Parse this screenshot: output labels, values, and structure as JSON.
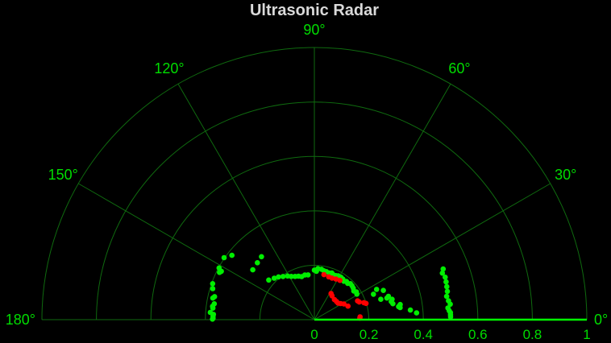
{
  "chart_data": {
    "type": "scatter",
    "coordinate_system": "polar-half",
    "title": "Ultrasonic Radar",
    "angle_ticks": [
      {
        "deg": 0,
        "label": "0°"
      },
      {
        "deg": 30,
        "label": "30°"
      },
      {
        "deg": 60,
        "label": "60°"
      },
      {
        "deg": 90,
        "label": "90°"
      },
      {
        "deg": 120,
        "label": "120°"
      },
      {
        "deg": 150,
        "label": "150°"
      },
      {
        "deg": 180,
        "label": "180°"
      }
    ],
    "radial_ticks": [
      {
        "r": 0,
        "label": "0"
      },
      {
        "r": 0.2,
        "label": "0.2"
      },
      {
        "r": 0.4,
        "label": "0.4"
      },
      {
        "r": 0.6,
        "label": "0.6"
      },
      {
        "r": 0.8,
        "label": "0.8"
      },
      {
        "r": 1,
        "label": "1"
      }
    ],
    "rlim": [
      0,
      1
    ],
    "grid": true,
    "sweep_angle_deg": 0,
    "colors": {
      "grid": "#0f6a0f",
      "labels": "#00dd00",
      "sweep": "#00ff00",
      "far": "#00ee00",
      "near": "#ff0000",
      "title": "#d9d9d9"
    },
    "series": [
      {
        "color": "#00ee00",
        "points": [
          [
            0.5,
            1.2
          ],
          [
            0.5,
            2.0
          ],
          [
            0.5,
            3.0
          ],
          [
            0.496,
            3.8
          ],
          [
            0.492,
            5.0
          ],
          [
            0.502,
            6.5
          ],
          [
            0.497,
            8.0
          ],
          [
            0.493,
            10.0
          ],
          [
            0.499,
            12.0
          ],
          [
            0.501,
            14.0
          ],
          [
            0.503,
            16.0
          ],
          [
            0.505,
            18.0
          ],
          [
            0.5,
            20.0
          ],
          [
            0.508,
            21.5
          ],
          [
            0.376,
            3.8
          ],
          [
            0.354,
            5.7
          ],
          [
            0.318,
            8.0
          ],
          [
            0.313,
            8.8
          ],
          [
            0.32,
            10.0
          ],
          [
            0.294,
            11.5
          ],
          [
            0.29,
            13.2
          ],
          [
            0.295,
            14.7
          ],
          [
            0.278,
            16.6
          ],
          [
            0.285,
            17.5
          ],
          [
            0.255,
            17.1
          ],
          [
            0.275,
            23.0
          ],
          [
            0.236,
            23.3
          ],
          [
            0.254,
            26.0
          ],
          [
            0.182,
            31.0
          ],
          [
            0.185,
            33.5
          ],
          [
            0.179,
            36.0
          ],
          [
            0.184,
            39.0
          ],
          [
            0.186,
            42.0
          ],
          [
            0.187,
            45.0
          ],
          [
            0.181,
            47.5
          ],
          [
            0.183,
            50.0
          ],
          [
            0.178,
            52.5
          ],
          [
            0.182,
            55.0
          ],
          [
            0.184,
            58.0
          ],
          [
            0.183,
            61.5
          ],
          [
            0.18,
            64.0
          ],
          [
            0.179,
            67.0
          ],
          [
            0.183,
            69.5
          ],
          [
            0.18,
            72.5
          ],
          [
            0.182,
            76.0
          ],
          [
            0.183,
            79.0
          ],
          [
            0.187,
            82.0
          ],
          [
            0.188,
            86.0
          ],
          [
            0.178,
            87.5
          ],
          [
            0.182,
            90.0
          ],
          [
            0.166,
            98.0
          ],
          [
            0.168,
            102.0
          ],
          [
            0.165,
            106.5
          ],
          [
            0.17,
            110.0
          ],
          [
            0.174,
            114.0
          ],
          [
            0.18,
            118.0
          ],
          [
            0.188,
            121.5
          ],
          [
            0.196,
            126.0
          ],
          [
            0.205,
            130.0
          ],
          [
            0.212,
            134.0
          ],
          [
            0.222,
            139.0
          ],
          [
            0.302,
            130.0
          ],
          [
            0.296,
            135.0
          ],
          [
            0.291,
            141.0
          ],
          [
            0.384,
            142.0
          ],
          [
            0.402,
            145.5
          ],
          [
            0.398,
            151.5
          ],
          [
            0.385,
            152.5
          ],
          [
            0.389,
            153.5
          ],
          [
            0.396,
            160.5
          ],
          [
            0.39,
            163.0
          ],
          [
            0.376,
            167.0
          ],
          [
            0.381,
            168.0
          ],
          [
            0.372,
            171.0
          ],
          [
            0.377,
            172.5
          ],
          [
            0.375,
            173.5
          ],
          [
            0.383,
            176.0
          ],
          [
            0.371,
            177.0
          ],
          [
            0.372,
            178.0
          ],
          [
            0.372,
            179.2
          ],
          [
            0.374,
            179.7
          ]
        ]
      },
      {
        "color": "#ff0000",
        "points": [
          [
            0.167,
            2.0
          ],
          [
            0.168,
            3.5
          ],
          [
            0.199,
            17.5
          ],
          [
            0.192,
            19.0
          ],
          [
            0.177,
            21.5
          ],
          [
            0.173,
            23.5
          ],
          [
            0.133,
            22.0
          ],
          [
            0.123,
            28.0
          ],
          [
            0.113,
            31.5
          ],
          [
            0.106,
            35.0
          ],
          [
            0.105,
            39.5
          ],
          [
            0.104,
            45.0
          ],
          [
            0.109,
            53.5
          ],
          [
            0.114,
            57.5
          ],
          [
            0.172,
            57.0
          ],
          [
            0.169,
            62.0
          ],
          [
            0.166,
            67.0
          ],
          [
            0.166,
            71.5
          ],
          [
            0.169,
            78.0
          ]
        ]
      }
    ]
  }
}
